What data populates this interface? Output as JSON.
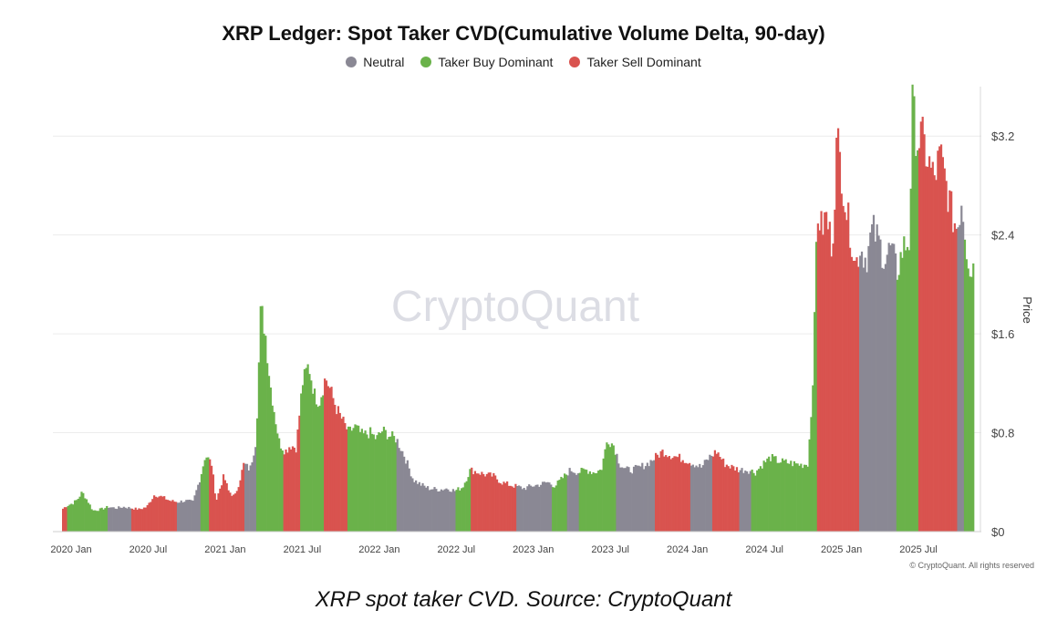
{
  "title": "XRP Ledger: Spot Taker CVD(Cumulative Volume Delta, 90-day)",
  "watermark": "CryptoQuant",
  "copyright": "© CryptoQuant. All rights reserved",
  "caption": "XRP spot taker CVD. Source: CryptoQuant",
  "colors": {
    "neutral": "#8a8894",
    "buy": "#6ab24a",
    "sell": "#d9534f",
    "grid": "#ececec",
    "axis_text": "#444444",
    "watermark": "#dcdde4"
  },
  "chart_data": {
    "type": "bar",
    "title": "XRP Ledger: Spot Taker CVD(Cumulative Volume Delta, 90-day)",
    "xlabel": "",
    "ylabel": "Price",
    "ylim": [
      0,
      3.6
    ],
    "y_ticks": [
      {
        "value": 0,
        "label": "$0"
      },
      {
        "value": 0.8,
        "label": "$0.8"
      },
      {
        "value": 1.6,
        "label": "$1.6"
      },
      {
        "value": 2.4,
        "label": "$2.4"
      },
      {
        "value": 3.2,
        "label": "$3.2"
      }
    ],
    "x_range": [
      2020.0,
      2025.92
    ],
    "x_ticks": [
      {
        "value": 2020.0,
        "label": "2020 Jan"
      },
      {
        "value": 2020.5,
        "label": "2020 Jul"
      },
      {
        "value": 2021.0,
        "label": "2021 Jan"
      },
      {
        "value": 2021.5,
        "label": "2021 Jul"
      },
      {
        "value": 2022.0,
        "label": "2022 Jan"
      },
      {
        "value": 2022.5,
        "label": "2022 Jul"
      },
      {
        "value": 2023.0,
        "label": "2023 Jan"
      },
      {
        "value": 2023.5,
        "label": "2023 Jul"
      },
      {
        "value": 2024.0,
        "label": "2024 Jan"
      },
      {
        "value": 2024.5,
        "label": "2024 Jul"
      },
      {
        "value": 2025.0,
        "label": "2025 Jan"
      },
      {
        "value": 2025.5,
        "label": "2025 Jul"
      }
    ],
    "legend": [
      {
        "key": "neutral",
        "label": "Neutral"
      },
      {
        "key": "buy",
        "label": "Taker Buy Dominant"
      },
      {
        "key": "sell",
        "label": "Taker Sell Dominant"
      }
    ],
    "series_points": [
      [
        2020.0,
        0.18
      ],
      [
        2020.03,
        0.21
      ],
      [
        2020.07,
        0.23
      ],
      [
        2020.1,
        0.26
      ],
      [
        2020.13,
        0.32
      ],
      [
        2020.17,
        0.24
      ],
      [
        2020.2,
        0.17
      ],
      [
        2020.25,
        0.18
      ],
      [
        2020.3,
        0.2
      ],
      [
        2020.35,
        0.19
      ],
      [
        2020.4,
        0.2
      ],
      [
        2020.45,
        0.19
      ],
      [
        2020.5,
        0.18
      ],
      [
        2020.55,
        0.2
      ],
      [
        2020.6,
        0.3
      ],
      [
        2020.65,
        0.28
      ],
      [
        2020.7,
        0.25
      ],
      [
        2020.75,
        0.24
      ],
      [
        2020.8,
        0.25
      ],
      [
        2020.85,
        0.24
      ],
      [
        2020.9,
        0.45
      ],
      [
        2020.93,
        0.62
      ],
      [
        2020.97,
        0.55
      ],
      [
        2021.0,
        0.25
      ],
      [
        2021.05,
        0.45
      ],
      [
        2021.08,
        0.33
      ],
      [
        2021.12,
        0.28
      ],
      [
        2021.15,
        0.4
      ],
      [
        2021.18,
        0.55
      ],
      [
        2021.22,
        0.5
      ],
      [
        2021.26,
        0.75
      ],
      [
        2021.29,
        1.82
      ],
      [
        2021.32,
        1.6
      ],
      [
        2021.35,
        1.2
      ],
      [
        2021.38,
        0.95
      ],
      [
        2021.41,
        0.72
      ],
      [
        2021.45,
        0.65
      ],
      [
        2021.48,
        0.7
      ],
      [
        2021.52,
        0.68
      ],
      [
        2021.56,
        1.2
      ],
      [
        2021.6,
        1.35
      ],
      [
        2021.64,
        1.1
      ],
      [
        2021.67,
        1.05
      ],
      [
        2021.71,
        1.25
      ],
      [
        2021.74,
        1.15
      ],
      [
        2021.78,
        1.0
      ],
      [
        2021.82,
        0.9
      ],
      [
        2021.86,
        0.8
      ],
      [
        2021.9,
        0.85
      ],
      [
        2021.95,
        0.78
      ],
      [
        2022.0,
        0.8
      ],
      [
        2022.04,
        0.75
      ],
      [
        2022.08,
        0.82
      ],
      [
        2022.12,
        0.78
      ],
      [
        2022.17,
        0.75
      ],
      [
        2022.22,
        0.62
      ],
      [
        2022.28,
        0.42
      ],
      [
        2022.33,
        0.38
      ],
      [
        2022.38,
        0.35
      ],
      [
        2022.45,
        0.34
      ],
      [
        2022.5,
        0.35
      ],
      [
        2022.55,
        0.33
      ],
      [
        2022.6,
        0.36
      ],
      [
        2022.65,
        0.5
      ],
      [
        2022.7,
        0.48
      ],
      [
        2022.75,
        0.46
      ],
      [
        2022.8,
        0.45
      ],
      [
        2022.85,
        0.4
      ],
      [
        2022.9,
        0.38
      ],
      [
        2023.0,
        0.35
      ],
      [
        2023.05,
        0.37
      ],
      [
        2023.1,
        0.38
      ],
      [
        2023.15,
        0.4
      ],
      [
        2023.2,
        0.37
      ],
      [
        2023.3,
        0.5
      ],
      [
        2023.35,
        0.48
      ],
      [
        2023.4,
        0.5
      ],
      [
        2023.45,
        0.48
      ],
      [
        2023.5,
        0.5
      ],
      [
        2023.54,
        0.75
      ],
      [
        2023.58,
        0.7
      ],
      [
        2023.62,
        0.55
      ],
      [
        2023.66,
        0.5
      ],
      [
        2023.7,
        0.5
      ],
      [
        2023.75,
        0.52
      ],
      [
        2023.8,
        0.55
      ],
      [
        2023.85,
        0.6
      ],
      [
        2023.9,
        0.65
      ],
      [
        2023.95,
        0.62
      ],
      [
        2024.0,
        0.6
      ],
      [
        2024.05,
        0.58
      ],
      [
        2024.1,
        0.55
      ],
      [
        2024.15,
        0.52
      ],
      [
        2024.2,
        0.6
      ],
      [
        2024.25,
        0.65
      ],
      [
        2024.3,
        0.55
      ],
      [
        2024.35,
        0.52
      ],
      [
        2024.4,
        0.5
      ],
      [
        2024.45,
        0.5
      ],
      [
        2024.5,
        0.48
      ],
      [
        2024.55,
        0.55
      ],
      [
        2024.6,
        0.6
      ],
      [
        2024.65,
        0.57
      ],
      [
        2024.7,
        0.56
      ],
      [
        2024.75,
        0.55
      ],
      [
        2024.8,
        0.54
      ],
      [
        2024.84,
        0.55
      ],
      [
        2024.86,
        0.9
      ],
      [
        2024.88,
        1.45
      ],
      [
        2024.9,
        2.6
      ],
      [
        2024.93,
        2.45
      ],
      [
        2024.96,
        2.55
      ],
      [
        2025.0,
        2.3
      ],
      [
        2025.03,
        3.2
      ],
      [
        2025.06,
        2.9
      ],
      [
        2025.09,
        2.6
      ],
      [
        2025.12,
        2.4
      ],
      [
        2025.15,
        2.15
      ],
      [
        2025.18,
        2.3
      ],
      [
        2025.22,
        2.2
      ],
      [
        2025.26,
        2.45
      ],
      [
        2025.3,
        2.35
      ],
      [
        2025.34,
        2.2
      ],
      [
        2025.38,
        2.3
      ],
      [
        2025.42,
        2.1
      ],
      [
        2025.46,
        2.3
      ],
      [
        2025.5,
        2.35
      ],
      [
        2025.52,
        3.45
      ],
      [
        2025.55,
        3.15
      ],
      [
        2025.58,
        3.2
      ],
      [
        2025.62,
        3.0
      ],
      [
        2025.66,
        2.85
      ],
      [
        2025.7,
        3.05
      ],
      [
        2025.74,
        2.8
      ],
      [
        2025.78,
        2.55
      ],
      [
        2025.81,
        2.45
      ],
      [
        2025.84,
        2.7
      ],
      [
        2025.87,
        2.3
      ],
      [
        2025.9,
        2.1
      ],
      [
        2025.92,
        2.2
      ]
    ],
    "regime_segments": [
      {
        "start": 2020.0,
        "end": 2020.03,
        "state": "sell"
      },
      {
        "start": 2020.03,
        "end": 2020.3,
        "state": "buy"
      },
      {
        "start": 2020.3,
        "end": 2020.45,
        "state": "neutral"
      },
      {
        "start": 2020.45,
        "end": 2020.75,
        "state": "sell"
      },
      {
        "start": 2020.75,
        "end": 2020.9,
        "state": "neutral"
      },
      {
        "start": 2020.9,
        "end": 2020.95,
        "state": "buy"
      },
      {
        "start": 2020.95,
        "end": 2021.18,
        "state": "sell"
      },
      {
        "start": 2021.18,
        "end": 2021.26,
        "state": "neutral"
      },
      {
        "start": 2021.26,
        "end": 2021.44,
        "state": "buy"
      },
      {
        "start": 2021.44,
        "end": 2021.55,
        "state": "sell"
      },
      {
        "start": 2021.55,
        "end": 2021.7,
        "state": "buy"
      },
      {
        "start": 2021.7,
        "end": 2021.85,
        "state": "sell"
      },
      {
        "start": 2021.85,
        "end": 2022.17,
        "state": "buy"
      },
      {
        "start": 2022.17,
        "end": 2022.55,
        "state": "neutral"
      },
      {
        "start": 2022.55,
        "end": 2022.65,
        "state": "buy"
      },
      {
        "start": 2022.65,
        "end": 2022.95,
        "state": "sell"
      },
      {
        "start": 2022.95,
        "end": 2023.18,
        "state": "neutral"
      },
      {
        "start": 2023.18,
        "end": 2023.28,
        "state": "buy"
      },
      {
        "start": 2023.28,
        "end": 2023.36,
        "state": "neutral"
      },
      {
        "start": 2023.36,
        "end": 2023.6,
        "state": "buy"
      },
      {
        "start": 2023.6,
        "end": 2023.85,
        "state": "neutral"
      },
      {
        "start": 2023.85,
        "end": 2024.08,
        "state": "sell"
      },
      {
        "start": 2024.08,
        "end": 2024.22,
        "state": "neutral"
      },
      {
        "start": 2024.22,
        "end": 2024.4,
        "state": "sell"
      },
      {
        "start": 2024.4,
        "end": 2024.47,
        "state": "neutral"
      },
      {
        "start": 2024.47,
        "end": 2024.9,
        "state": "buy"
      },
      {
        "start": 2024.9,
        "end": 2025.17,
        "state": "sell"
      },
      {
        "start": 2025.17,
        "end": 2025.42,
        "state": "neutral"
      },
      {
        "start": 2025.42,
        "end": 2025.56,
        "state": "buy"
      },
      {
        "start": 2025.56,
        "end": 2025.81,
        "state": "sell"
      },
      {
        "start": 2025.81,
        "end": 2025.85,
        "state": "neutral"
      },
      {
        "start": 2025.85,
        "end": 2025.92,
        "state": "buy"
      }
    ]
  }
}
